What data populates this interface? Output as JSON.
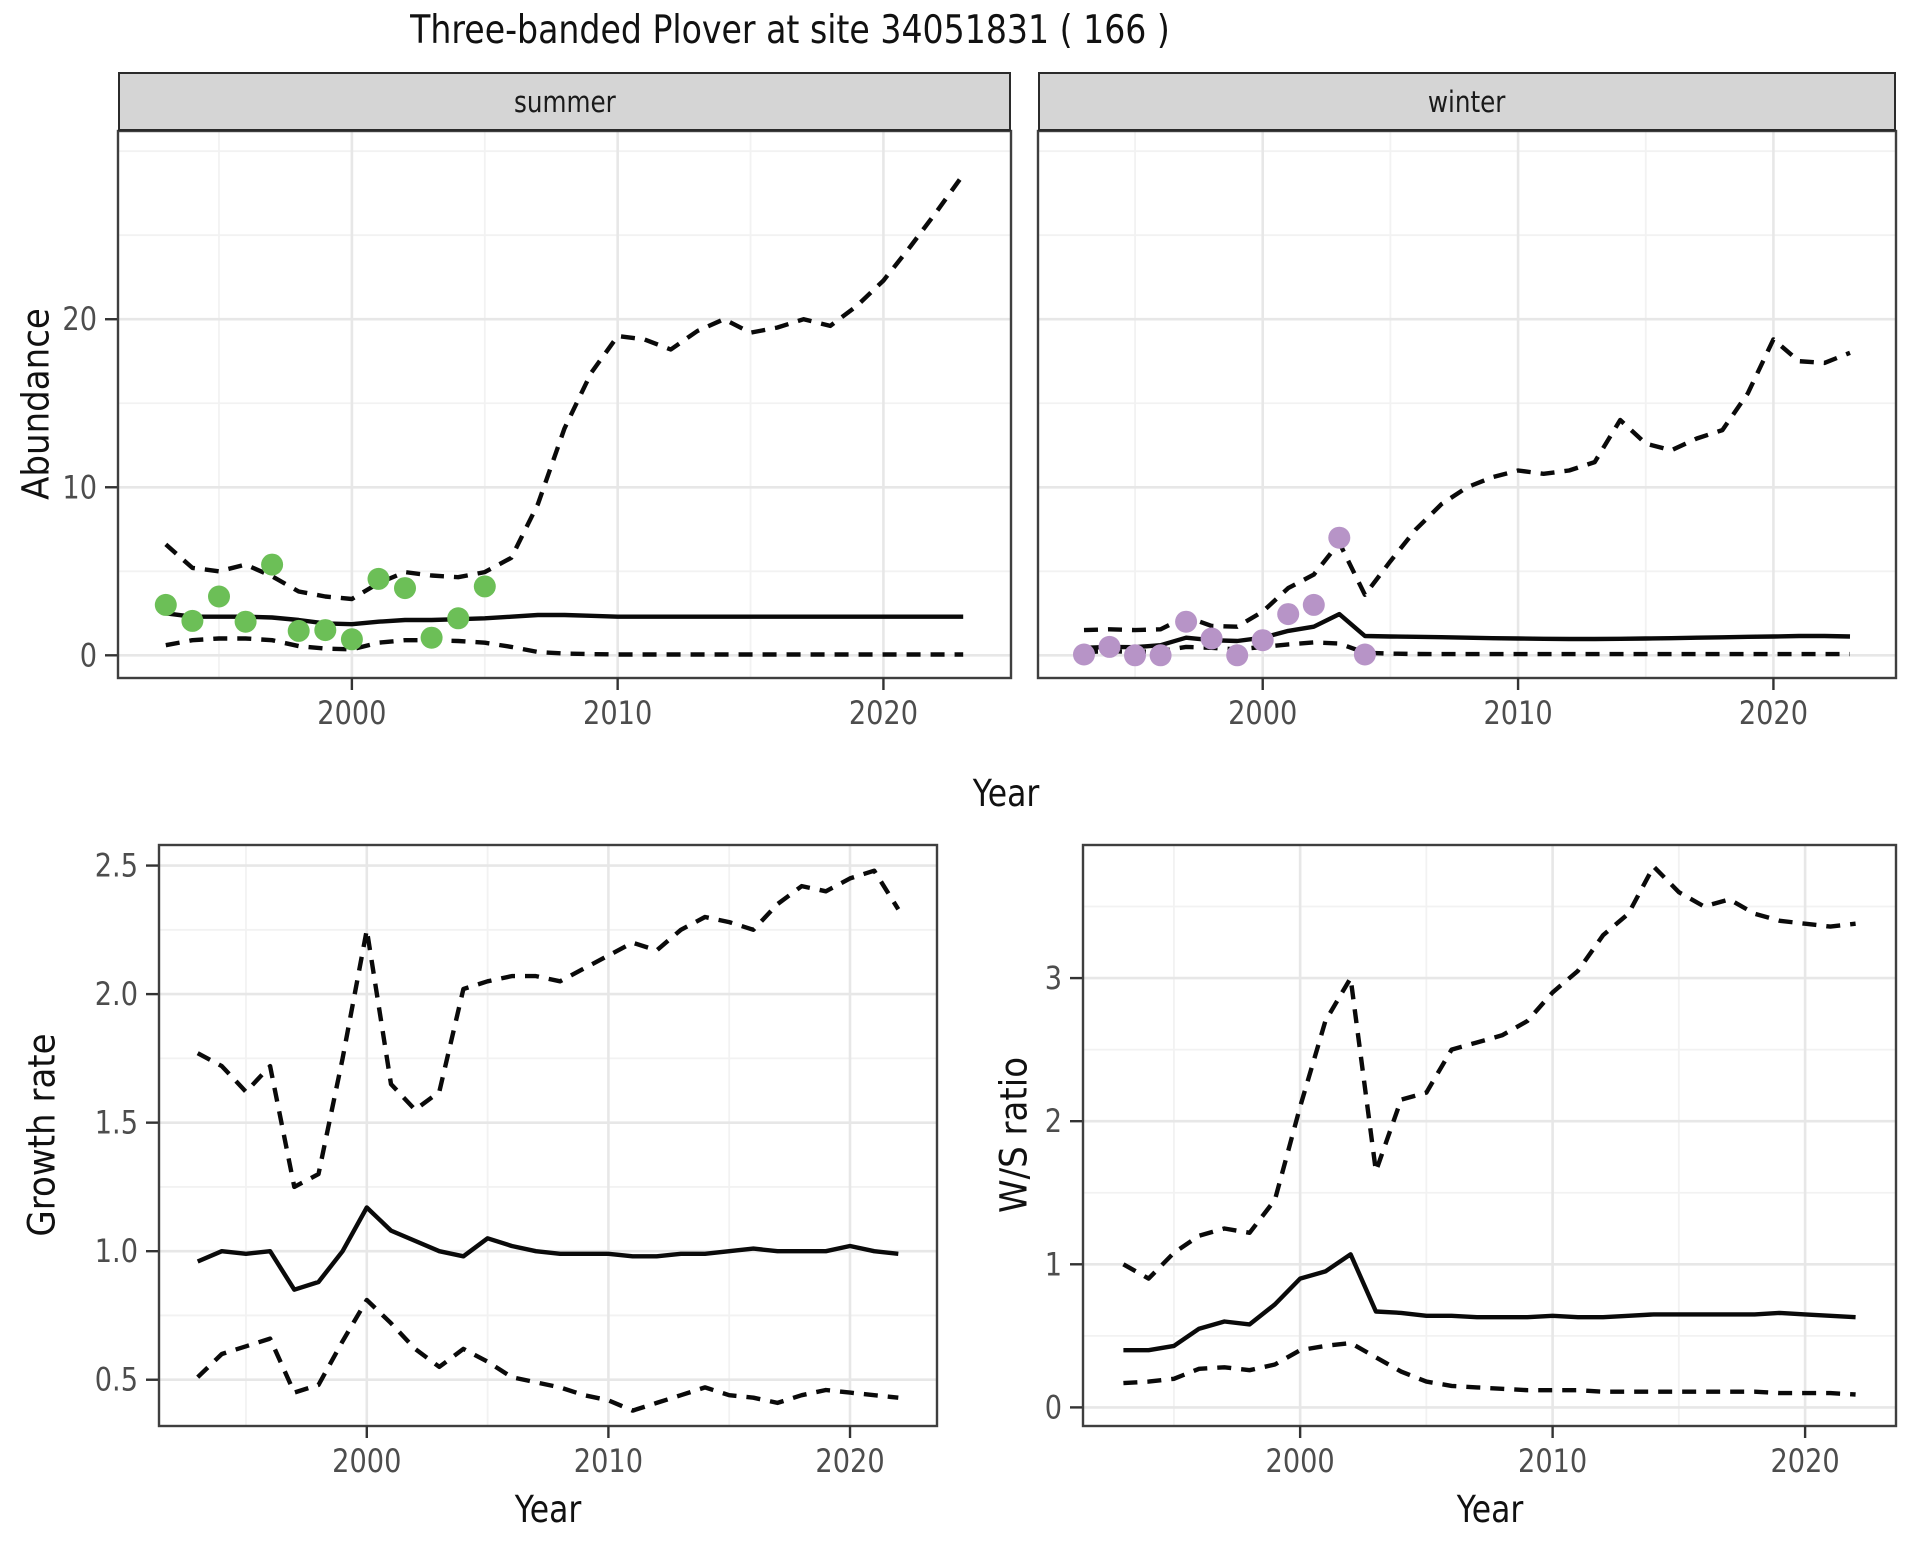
{
  "chart_data": {
    "type": "line",
    "title": "Three-banded Plover at site 34051831 ( 166 )",
    "facet_variable_values": [
      "summer",
      "winter"
    ],
    "legend_position": "none",
    "grid": "on",
    "colors": {
      "summer_point": "#6CBF57",
      "winter_point": "#B794C7",
      "line": "#0a0a0a",
      "grid_major": "#e7e7e7",
      "grid_minor": "#f2f2f2",
      "panel_border": "#3f3f3f",
      "tick_label": "#4d4d4d",
      "tick_mark": "#333333"
    },
    "panels": [
      {
        "name": "abundance-summer",
        "strip_label": "summer",
        "xlabel": "Year",
        "ylabel": "Abundance",
        "xlim": [
          1991.2,
          2024.8
        ],
        "ylim": [
          -1.35,
          31.2
        ],
        "xtick_values": [
          2000,
          2010,
          2020
        ],
        "xtick_labels": [
          "2000",
          "2010",
          "2020"
        ],
        "ytick_values": [
          0,
          10,
          20
        ],
        "ytick_labels": [
          "0",
          "10",
          "20"
        ],
        "xminor": [
          1995,
          2005,
          2015
        ],
        "yminor": [
          5,
          15,
          25,
          30
        ],
        "years": [
          1993,
          1994,
          1995,
          1996,
          1997,
          1998,
          1999,
          2000,
          2001,
          2002,
          2003,
          2004,
          2005,
          2006,
          2007,
          2008,
          2009,
          2010,
          2011,
          2012,
          2013,
          2014,
          2015,
          2016,
          2017,
          2018,
          2019,
          2020,
          2021,
          2022,
          2023
        ],
        "series": [
          {
            "name": "upper_ci",
            "linetype": "dashed",
            "values": [
              6.6,
              5.2,
              5.0,
              5.4,
              4.7,
              3.8,
              3.5,
              3.35,
              4.3,
              4.95,
              4.75,
              4.65,
              4.95,
              5.8,
              9.0,
              13.5,
              16.8,
              19.0,
              18.8,
              18.2,
              19.3,
              20.0,
              19.2,
              19.5,
              20.0,
              19.6,
              20.8,
              22.3,
              24.3,
              26.4,
              28.6
            ]
          },
          {
            "name": "median",
            "linetype": "solid",
            "values": [
              2.5,
              2.3,
              2.3,
              2.3,
              2.25,
              2.1,
              1.9,
              1.85,
              2.0,
              2.1,
              2.1,
              2.15,
              2.2,
              2.3,
              2.4,
              2.4,
              2.35,
              2.3,
              2.3,
              2.3,
              2.3,
              2.3,
              2.3,
              2.3,
              2.3,
              2.3,
              2.3,
              2.3,
              2.3,
              2.3,
              2.3
            ]
          },
          {
            "name": "lower_ci",
            "linetype": "dashed",
            "values": [
              0.6,
              0.9,
              1.0,
              1.0,
              0.9,
              0.55,
              0.4,
              0.35,
              0.75,
              0.9,
              0.9,
              0.85,
              0.75,
              0.5,
              0.2,
              0.1,
              0.07,
              0.05,
              0.05,
              0.05,
              0.05,
              0.05,
              0.05,
              0.05,
              0.05,
              0.05,
              0.05,
              0.05,
              0.05,
              0.05,
              0.05
            ]
          }
        ],
        "points": {
          "name": "summer observed counts",
          "color": "#6CBF57",
          "years": [
            1993,
            1994,
            1995,
            1996,
            1997,
            1998,
            1999,
            2000,
            2001,
            2002,
            2003,
            2004,
            2005
          ],
          "values": [
            3.0,
            2.05,
            3.5,
            2.0,
            5.4,
            1.45,
            1.5,
            0.95,
            4.55,
            4.0,
            1.05,
            2.2,
            4.1
          ]
        }
      },
      {
        "name": "abundance-winter",
        "strip_label": "winter",
        "xlabel": "Year",
        "ylabel": "Abundance",
        "xlim": [
          1991.2,
          2024.8
        ],
        "ylim": [
          -1.35,
          31.2
        ],
        "xtick_values": [
          2000,
          2010,
          2020
        ],
        "xtick_labels": [
          "2000",
          "2010",
          "2020"
        ],
        "ytick_values": [
          0,
          10,
          20
        ],
        "ytick_labels": [],
        "xminor": [
          1995,
          2005,
          2015
        ],
        "yminor": [
          5,
          15,
          25,
          30
        ],
        "years": [
          1993,
          1994,
          1995,
          1996,
          1997,
          1998,
          1999,
          2000,
          2001,
          2002,
          2003,
          2004,
          2005,
          2006,
          2007,
          2008,
          2009,
          2010,
          2011,
          2012,
          2013,
          2014,
          2015,
          2016,
          2017,
          2018,
          2019,
          2020,
          2021,
          2022,
          2023
        ],
        "series": [
          {
            "name": "upper_ci",
            "linetype": "dashed",
            "values": [
              1.5,
              1.55,
              1.5,
              1.55,
              2.3,
              1.75,
              1.7,
              2.6,
              4.0,
              4.8,
              6.7,
              3.6,
              5.6,
              7.5,
              9.0,
              10.0,
              10.6,
              11.0,
              10.8,
              11.0,
              11.5,
              14.0,
              12.6,
              12.2,
              12.9,
              13.4,
              15.6,
              18.8,
              17.5,
              17.4,
              18.0
            ]
          },
          {
            "name": "median",
            "linetype": "solid",
            "values": [
              0.45,
              0.5,
              0.48,
              0.6,
              1.05,
              0.9,
              0.85,
              1.05,
              1.45,
              1.7,
              2.45,
              1.15,
              1.12,
              1.1,
              1.08,
              1.05,
              1.02,
              1.0,
              0.98,
              0.97,
              0.97,
              0.98,
              1.0,
              1.02,
              1.05,
              1.07,
              1.1,
              1.12,
              1.15,
              1.15,
              1.12
            ]
          },
          {
            "name": "lower_ci",
            "linetype": "dashed",
            "values": [
              0.2,
              0.25,
              0.2,
              0.25,
              0.5,
              0.45,
              0.35,
              0.5,
              0.65,
              0.77,
              0.7,
              0.15,
              0.1,
              0.08,
              0.07,
              0.07,
              0.07,
              0.07,
              0.07,
              0.07,
              0.07,
              0.07,
              0.07,
              0.07,
              0.07,
              0.07,
              0.07,
              0.07,
              0.07,
              0.07,
              0.07
            ]
          }
        ],
        "points": {
          "name": "winter observed counts",
          "color": "#B794C7",
          "years": [
            1993,
            1994,
            1995,
            1996,
            1997,
            1998,
            1999,
            2000,
            2001,
            2002,
            2003,
            2004
          ],
          "values": [
            0.05,
            0.5,
            0.0,
            0.0,
            2.0,
            1.0,
            0.0,
            0.9,
            2.45,
            3.0,
            7.0,
            0.05
          ]
        }
      },
      {
        "name": "growth-rate",
        "strip_label": null,
        "xlabel": "Year",
        "ylabel": "Growth rate",
        "xlim": [
          1991.4,
          2023.6
        ],
        "ylim": [
          0.32,
          2.58
        ],
        "xtick_values": [
          2000,
          2010,
          2020
        ],
        "xtick_labels": [
          "2000",
          "2010",
          "2020"
        ],
        "ytick_values": [
          0.5,
          1.0,
          1.5,
          2.0,
          2.5
        ],
        "ytick_labels": [
          "0.5",
          "1.0",
          "1.5",
          "2.0",
          "2.5"
        ],
        "xminor": [
          1995,
          2005,
          2015
        ],
        "yminor": [
          0.75,
          1.25,
          1.75,
          2.25
        ],
        "years": [
          1993,
          1994,
          1995,
          1996,
          1997,
          1998,
          1999,
          2000,
          2001,
          2002,
          2003,
          2004,
          2005,
          2006,
          2007,
          2008,
          2009,
          2010,
          2011,
          2012,
          2013,
          2014,
          2015,
          2016,
          2017,
          2018,
          2019,
          2020,
          2021,
          2022
        ],
        "series": [
          {
            "name": "upper_ci",
            "linetype": "dashed",
            "values": [
              1.77,
              1.72,
              1.62,
              1.72,
              1.25,
              1.3,
              1.75,
              2.25,
              1.65,
              1.55,
              1.62,
              2.02,
              2.05,
              2.07,
              2.07,
              2.05,
              2.1,
              2.15,
              2.2,
              2.17,
              2.25,
              2.3,
              2.28,
              2.25,
              2.35,
              2.42,
              2.4,
              2.45,
              2.48,
              2.33
            ]
          },
          {
            "name": "median",
            "linetype": "solid",
            "values": [
              0.96,
              1.0,
              0.99,
              1.0,
              0.85,
              0.88,
              1.0,
              1.17,
              1.08,
              1.04,
              1.0,
              0.98,
              1.05,
              1.02,
              1.0,
              0.99,
              0.99,
              0.99,
              0.98,
              0.98,
              0.99,
              0.99,
              1.0,
              1.01,
              1.0,
              1.0,
              1.0,
              1.02,
              1.0,
              0.99
            ]
          },
          {
            "name": "lower_ci",
            "linetype": "dashed",
            "values": [
              0.51,
              0.6,
              0.63,
              0.66,
              0.45,
              0.48,
              0.65,
              0.81,
              0.72,
              0.62,
              0.55,
              0.62,
              0.57,
              0.51,
              0.49,
              0.47,
              0.44,
              0.42,
              0.38,
              0.41,
              0.44,
              0.47,
              0.44,
              0.43,
              0.41,
              0.44,
              0.46,
              0.45,
              0.44,
              0.43
            ]
          }
        ],
        "points": null
      },
      {
        "name": "ws-ratio",
        "strip_label": null,
        "xlabel": "Year",
        "ylabel": "W/S ratio",
        "xlim": [
          1991.4,
          2023.6
        ],
        "ylim": [
          -0.13,
          3.93
        ],
        "xtick_values": [
          2000,
          2010,
          2020
        ],
        "xtick_labels": [
          "2000",
          "2010",
          "2020"
        ],
        "ytick_values": [
          0,
          1,
          2,
          3
        ],
        "ytick_labels": [
          "0",
          "1",
          "2",
          "3"
        ],
        "xminor": [
          1995,
          2005,
          2015
        ],
        "yminor": [
          0.5,
          1.5,
          2.5,
          3.5
        ],
        "years": [
          1993,
          1994,
          1995,
          1996,
          1997,
          1998,
          1999,
          2000,
          2001,
          2002,
          2003,
          2004,
          2005,
          2006,
          2007,
          2008,
          2009,
          2010,
          2011,
          2012,
          2013,
          2014,
          2015,
          2016,
          2017,
          2018,
          2019,
          2020,
          2021,
          2022
        ],
        "series": [
          {
            "name": "upper_ci",
            "linetype": "dashed",
            "values": [
              1.0,
              0.9,
              1.08,
              1.2,
              1.25,
              1.22,
              1.45,
              2.1,
              2.7,
              3.0,
              1.65,
              2.15,
              2.2,
              2.5,
              2.55,
              2.6,
              2.7,
              2.9,
              3.05,
              3.3,
              3.45,
              3.78,
              3.6,
              3.5,
              3.55,
              3.45,
              3.4,
              3.38,
              3.36,
              3.38
            ]
          },
          {
            "name": "median",
            "linetype": "solid",
            "values": [
              0.4,
              0.4,
              0.43,
              0.55,
              0.6,
              0.58,
              0.72,
              0.9,
              0.95,
              1.07,
              0.67,
              0.66,
              0.64,
              0.64,
              0.63,
              0.63,
              0.63,
              0.64,
              0.63,
              0.63,
              0.64,
              0.65,
              0.65,
              0.65,
              0.65,
              0.65,
              0.66,
              0.65,
              0.64,
              0.63
            ]
          },
          {
            "name": "lower_ci",
            "linetype": "dashed",
            "values": [
              0.17,
              0.18,
              0.2,
              0.27,
              0.28,
              0.26,
              0.3,
              0.4,
              0.43,
              0.45,
              0.35,
              0.25,
              0.18,
              0.15,
              0.14,
              0.13,
              0.12,
              0.12,
              0.12,
              0.11,
              0.11,
              0.11,
              0.11,
              0.11,
              0.11,
              0.11,
              0.1,
              0.1,
              0.1,
              0.09
            ]
          }
        ],
        "points": null
      }
    ]
  }
}
